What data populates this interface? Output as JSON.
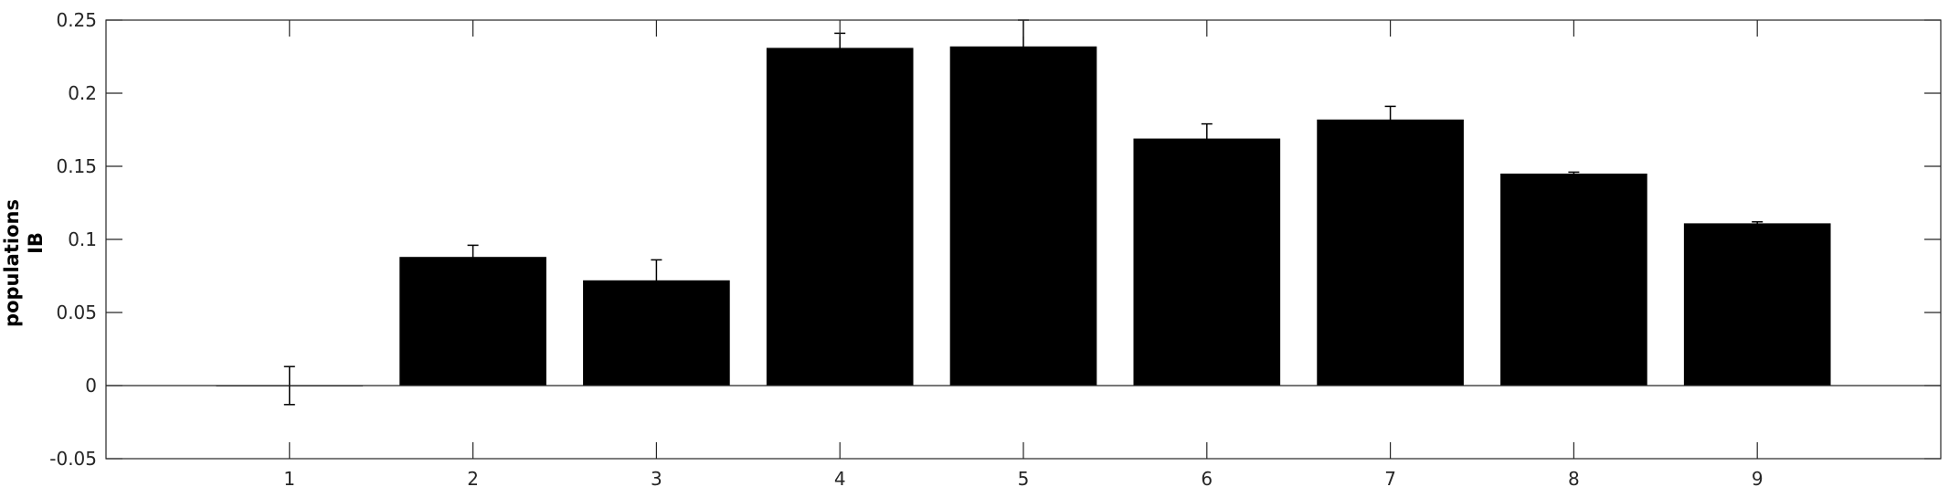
{
  "chart_data": {
    "type": "bar",
    "title": "",
    "xlabel": "",
    "ylabel_lines": [
      "populations",
      "IB"
    ],
    "categories": [
      "1",
      "2",
      "3",
      "4",
      "5",
      "6",
      "7",
      "8",
      "9"
    ],
    "values": [
      0.0,
      0.088,
      0.072,
      0.231,
      0.232,
      0.169,
      0.182,
      0.145,
      0.111
    ],
    "errors": [
      0.013,
      0.008,
      0.014,
      0.01,
      0.018,
      0.01,
      0.009,
      0.001,
      0.001
    ],
    "ylim": [
      -0.05,
      0.25
    ],
    "yticks": [
      -0.05,
      0,
      0.05,
      0.1,
      0.15,
      0.2,
      0.25
    ],
    "ytick_labels": [
      "-0.05",
      "0",
      "0.05",
      "0.1",
      "0.15",
      "0.2",
      "0.25"
    ],
    "xlim": [
      0,
      10
    ],
    "bar_color": "#000000",
    "axis_color": "#262626",
    "grid": false,
    "legend": "none"
  }
}
